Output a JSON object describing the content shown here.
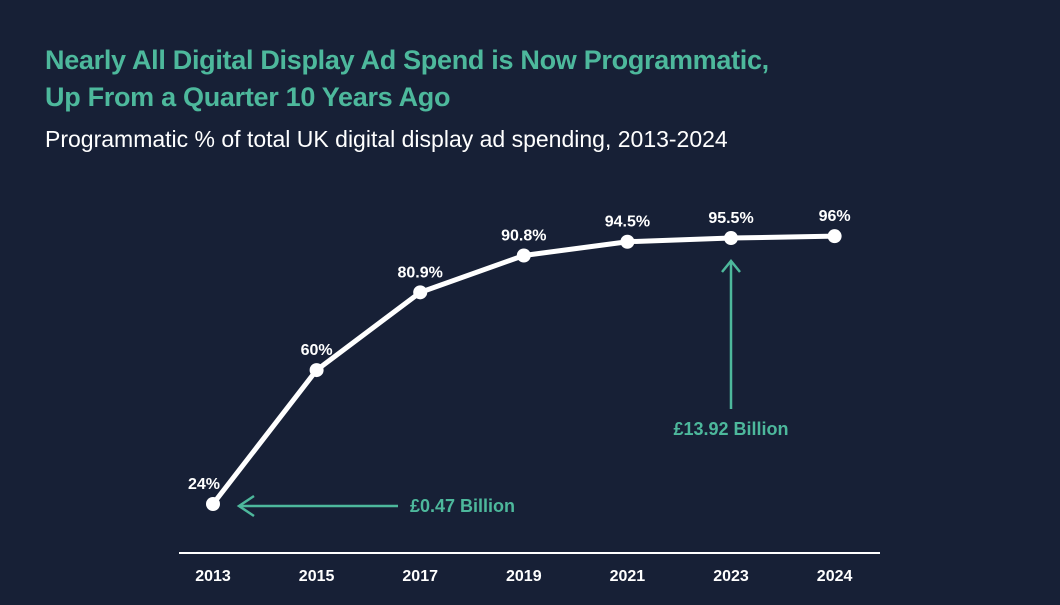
{
  "chart_data": {
    "type": "line",
    "title": "Nearly All Digital Display Ad Spend is Now Programmatic, Up From a Quarter 10 Years Ago",
    "title_lines": [
      "Nearly All Digital Display Ad Spend is Now Programmatic,",
      "Up From a Quarter 10 Years Ago"
    ],
    "subtitle": "Programmatic % of total UK digital display ad spending, 2013-2024",
    "xlabel": "",
    "ylabel": "",
    "categories": [
      "2013",
      "2015",
      "2017",
      "2019",
      "2021",
      "2023",
      "2024"
    ],
    "values": [
      24,
      60,
      80.9,
      90.8,
      94.5,
      95.5,
      96
    ],
    "data_labels": [
      "24%",
      "60%",
      "80.9%",
      "90.8%",
      "94.5%",
      "95.5%",
      "96%"
    ],
    "grid": false,
    "annotations": [
      {
        "text": "£0.47 Billion",
        "category": "2013",
        "arrow": "left"
      },
      {
        "text": "£13.92 Billion",
        "category": "2023",
        "arrow": "up"
      }
    ],
    "colors": {
      "background": "#172036",
      "line": "#ffffff",
      "accent": "#4db89c"
    }
  }
}
